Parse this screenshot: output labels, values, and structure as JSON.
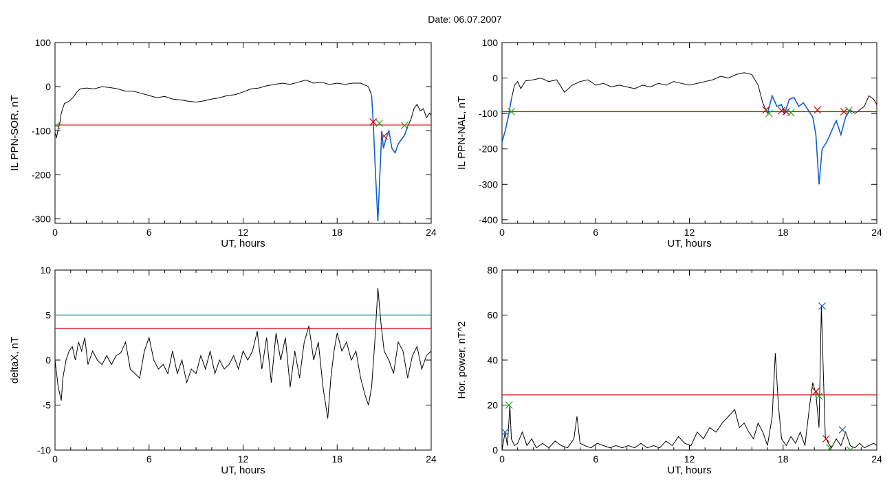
{
  "date_label": "Date:  06.07.2007",
  "colors": {
    "series": "#000000",
    "threshold": "#e00000",
    "threshold2": "#007f8f",
    "mark_red": "#d00000",
    "mark_green": "#20a020",
    "mark_blue": "#2060c0",
    "highlight": "#1060d0"
  },
  "chart_data": [
    {
      "id": "p1",
      "type": "line",
      "title": "",
      "xlabel": "UT, hours",
      "ylabel": "IL PPN-SOR, nT",
      "xlim": [
        0,
        24
      ],
      "ylim": [
        -310,
        100
      ],
      "xticks": [
        0,
        6,
        12,
        18,
        24
      ],
      "yticks": [
        -300,
        -200,
        -100,
        0,
        100
      ],
      "threshold": -87,
      "series": [
        {
          "x": [
            0,
            0.1,
            0.2,
            0.3,
            0.4,
            0.6,
            0.8,
            1.0,
            1.2,
            1.4,
            1.6,
            2.0,
            2.5,
            3.0,
            3.5,
            4.0,
            4.5,
            5.0,
            5.5,
            6.0,
            6.5,
            7.0,
            7.5,
            8.0,
            8.5,
            9.0,
            9.5,
            10.0,
            10.5,
            11.0,
            11.5,
            12.0,
            12.5,
            13.0,
            13.5,
            14.0,
            14.5,
            15.0,
            15.5,
            16.0,
            16.5,
            17.0,
            17.5,
            18.0,
            18.5,
            19.0,
            19.5,
            20.0,
            20.2,
            20.3,
            20.45,
            20.6,
            20.75,
            20.85,
            20.95,
            21.1,
            21.3,
            21.5,
            21.7,
            21.9,
            22.1,
            22.3,
            22.5,
            22.7,
            22.9,
            23.1,
            23.3,
            23.5,
            23.7,
            23.9,
            24.0
          ],
          "y": [
            -105,
            -115,
            -95,
            -85,
            -60,
            -38,
            -35,
            -30,
            -22,
            -12,
            -5,
            -3,
            -5,
            0,
            -2,
            -5,
            -10,
            -10,
            -15,
            -20,
            -25,
            -22,
            -28,
            -30,
            -33,
            -35,
            -32,
            -28,
            -25,
            -20,
            -18,
            -12,
            -5,
            -3,
            2,
            5,
            8,
            5,
            10,
            15,
            8,
            10,
            5,
            8,
            5,
            8,
            8,
            0,
            -20,
            -80,
            -200,
            -305,
            -180,
            -100,
            -140,
            -120,
            -100,
            -140,
            -150,
            -130,
            -120,
            -110,
            -90,
            -75,
            -50,
            -40,
            -55,
            -50,
            -70,
            -60,
            -65
          ]
        }
      ],
      "highlight_x": [
        20.2,
        22.5
      ],
      "marks": [
        {
          "x": 0.1,
          "y": -88,
          "color": "green"
        },
        {
          "x": 20.3,
          "y": -80,
          "color": "red"
        },
        {
          "x": 20.7,
          "y": -83,
          "color": "green"
        },
        {
          "x": 21.0,
          "y": -112,
          "color": "red"
        },
        {
          "x": 22.3,
          "y": -88,
          "color": "green"
        }
      ]
    },
    {
      "id": "p2",
      "type": "line",
      "title": "",
      "xlabel": "UT, hours",
      "ylabel": "IL PPN-NAL, nT",
      "xlim": [
        0,
        24
      ],
      "ylim": [
        -410,
        100
      ],
      "xticks": [
        0,
        6,
        12,
        18,
        24
      ],
      "yticks": [
        -400,
        -300,
        -200,
        -100,
        0,
        100
      ],
      "threshold": -95,
      "series": [
        {
          "x": [
            0,
            0.2,
            0.4,
            0.6,
            0.8,
            1.0,
            1.2,
            1.5,
            2.0,
            2.5,
            3.0,
            3.5,
            4.0,
            4.5,
            5.0,
            5.5,
            6.0,
            6.5,
            7.0,
            7.5,
            8.0,
            8.5,
            9.0,
            9.5,
            10.0,
            10.5,
            11.0,
            11.5,
            12.0,
            12.5,
            13.0,
            13.5,
            14.0,
            14.5,
            15.0,
            15.5,
            16.0,
            16.4,
            16.7,
            17.0,
            17.3,
            17.6,
            17.9,
            18.1,
            18.4,
            18.7,
            19.0,
            19.3,
            19.6,
            19.9,
            20.1,
            20.3,
            20.5,
            20.8,
            21.1,
            21.4,
            21.7,
            22.0,
            22.3,
            22.6,
            22.9,
            23.2,
            23.5,
            23.8,
            24.0
          ],
          "y": [
            -180,
            -150,
            -110,
            -60,
            -20,
            -10,
            -30,
            -8,
            -5,
            0,
            -10,
            -5,
            -40,
            -20,
            -10,
            -5,
            -20,
            -15,
            -25,
            -20,
            -25,
            -30,
            -20,
            -25,
            -15,
            -20,
            -10,
            -15,
            -20,
            -15,
            -10,
            -5,
            5,
            0,
            10,
            15,
            10,
            -20,
            -70,
            -100,
            -50,
            -80,
            -75,
            -100,
            -60,
            -55,
            -80,
            -70,
            -90,
            -110,
            -160,
            -300,
            -200,
            -180,
            -150,
            -120,
            -160,
            -110,
            -90,
            -100,
            -90,
            -80,
            -50,
            -60,
            -75
          ]
        }
      ],
      "highlight_x": [
        0,
        0.7
      ],
      "highlight_x2": [
        16.8,
        22.5
      ],
      "marks": [
        {
          "x": 0.6,
          "y": -95,
          "color": "green"
        },
        {
          "x": 16.9,
          "y": -90,
          "color": "red"
        },
        {
          "x": 17.1,
          "y": -100,
          "color": "green"
        },
        {
          "x": 17.9,
          "y": -92,
          "color": "red"
        },
        {
          "x": 18.2,
          "y": -95,
          "color": "red"
        },
        {
          "x": 18.5,
          "y": -98,
          "color": "green"
        },
        {
          "x": 20.2,
          "y": -90,
          "color": "red"
        },
        {
          "x": 21.9,
          "y": -95,
          "color": "red"
        },
        {
          "x": 22.2,
          "y": -92,
          "color": "green"
        }
      ]
    },
    {
      "id": "p3",
      "type": "line",
      "title": "",
      "xlabel": "UT, hours",
      "ylabel": "deltaX, nT",
      "xlim": [
        0,
        24
      ],
      "ylim": [
        -10,
        10
      ],
      "xticks": [
        0,
        6,
        12,
        18,
        24
      ],
      "yticks": [
        -10,
        -5,
        0,
        5,
        10
      ],
      "threshold": 3.5,
      "threshold2": 5,
      "series": [
        {
          "x": [
            0,
            0.2,
            0.4,
            0.5,
            0.7,
            0.9,
            1.1,
            1.3,
            1.5,
            1.7,
            1.9,
            2.1,
            2.4,
            2.7,
            3.0,
            3.3,
            3.6,
            3.9,
            4.2,
            4.5,
            4.8,
            5.1,
            5.4,
            5.7,
            6.0,
            6.3,
            6.6,
            6.9,
            7.2,
            7.5,
            7.8,
            8.1,
            8.4,
            8.7,
            9.0,
            9.3,
            9.6,
            9.9,
            10.2,
            10.5,
            10.8,
            11.1,
            11.4,
            11.7,
            12.0,
            12.3,
            12.6,
            12.9,
            13.2,
            13.5,
            13.8,
            14.1,
            14.4,
            14.7,
            15.0,
            15.3,
            15.6,
            15.9,
            16.2,
            16.5,
            16.8,
            17.1,
            17.4,
            17.6,
            17.8,
            18.0,
            18.3,
            18.6,
            18.9,
            19.2,
            19.5,
            19.8,
            20.0,
            20.2,
            20.4,
            20.6,
            20.8,
            21.0,
            21.3,
            21.6,
            21.9,
            22.2,
            22.5,
            22.8,
            23.1,
            23.4,
            23.7,
            24.0
          ],
          "y": [
            0,
            -3,
            -4.5,
            -2,
            0,
            1,
            1.5,
            0,
            2,
            1,
            2.5,
            -0.5,
            1,
            0,
            -0.5,
            0.5,
            -0.5,
            0.5,
            0.8,
            2,
            -1,
            -1.5,
            -2,
            1,
            2.5,
            0,
            -1,
            -0.5,
            -1.5,
            1,
            -1.5,
            0,
            -2.5,
            -1,
            -1.5,
            0.5,
            -1,
            1,
            -1.5,
            0,
            -1,
            -0.5,
            0.5,
            -1,
            1,
            0,
            1,
            3.2,
            -1,
            2.5,
            -2.5,
            3,
            0,
            2.5,
            -3,
            1,
            -2,
            2,
            3.8,
            0,
            2,
            -3,
            -6.5,
            -2,
            1,
            3,
            1,
            2,
            0,
            1,
            -2,
            -4,
            -5,
            -3,
            2,
            8,
            4,
            1,
            0,
            -1.5,
            2,
            1,
            -2,
            0.5,
            1.5,
            -1,
            0.5,
            1
          ]
        }
      ],
      "marks": []
    },
    {
      "id": "p4",
      "type": "line",
      "title": "",
      "xlabel": "UT, hours",
      "ylabel": "Hor. power, nT^2",
      "xlim": [
        0,
        24
      ],
      "ylim": [
        0,
        80
      ],
      "xticks": [
        0,
        6,
        12,
        18,
        24
      ],
      "yticks": [
        0,
        20,
        40,
        60,
        80
      ],
      "threshold": 24.5,
      "series": [
        {
          "x": [
            0,
            0.2,
            0.35,
            0.5,
            0.6,
            0.8,
            1.0,
            1.3,
            1.6,
            1.9,
            2.2,
            2.6,
            3.0,
            3.4,
            3.8,
            4.2,
            4.6,
            4.8,
            5.0,
            5.3,
            5.7,
            6.1,
            6.5,
            6.9,
            7.3,
            7.7,
            8.1,
            8.5,
            8.9,
            9.3,
            9.7,
            10.1,
            10.5,
            10.9,
            11.3,
            11.7,
            12.1,
            12.5,
            12.9,
            13.3,
            13.7,
            14.1,
            14.5,
            14.9,
            15.2,
            15.5,
            15.8,
            16.1,
            16.4,
            16.7,
            17.0,
            17.3,
            17.5,
            17.7,
            17.9,
            18.2,
            18.5,
            18.8,
            19.1,
            19.4,
            19.7,
            19.9,
            20.1,
            20.3,
            20.45,
            20.55,
            20.7,
            20.9,
            21.1,
            21.4,
            21.7,
            22.0,
            22.3,
            22.6,
            22.9,
            23.2,
            23.5,
            23.8,
            24.0
          ],
          "y": [
            0,
            8,
            2,
            20,
            5,
            2,
            3,
            8,
            2,
            5,
            1,
            3,
            1,
            4,
            2,
            1,
            5,
            15,
            3,
            2,
            1,
            3,
            2,
            1,
            2,
            1,
            2,
            1,
            3,
            1,
            2,
            1,
            4,
            2,
            6,
            3,
            2,
            8,
            5,
            10,
            8,
            12,
            15,
            18,
            10,
            12,
            8,
            5,
            12,
            8,
            2,
            15,
            43,
            20,
            5,
            2,
            6,
            3,
            8,
            2,
            20,
            30,
            25,
            10,
            64,
            40,
            6,
            3,
            1,
            5,
            2,
            8,
            2,
            1,
            3,
            1,
            2,
            3,
            2
          ]
        }
      ],
      "marks": [
        {
          "x": 0.2,
          "y": 8,
          "color": "blue"
        },
        {
          "x": 0.45,
          "y": 20,
          "color": "green"
        },
        {
          "x": 20.1,
          "y": 26,
          "color": "red"
        },
        {
          "x": 20.3,
          "y": 24,
          "color": "green"
        },
        {
          "x": 20.5,
          "y": 64,
          "color": "blue"
        },
        {
          "x": 20.75,
          "y": 5,
          "color": "red"
        },
        {
          "x": 21.0,
          "y": 1,
          "color": "green"
        },
        {
          "x": 21.8,
          "y": 9,
          "color": "blue"
        },
        {
          "x": 22.3,
          "y": 0,
          "color": "green"
        }
      ]
    }
  ]
}
